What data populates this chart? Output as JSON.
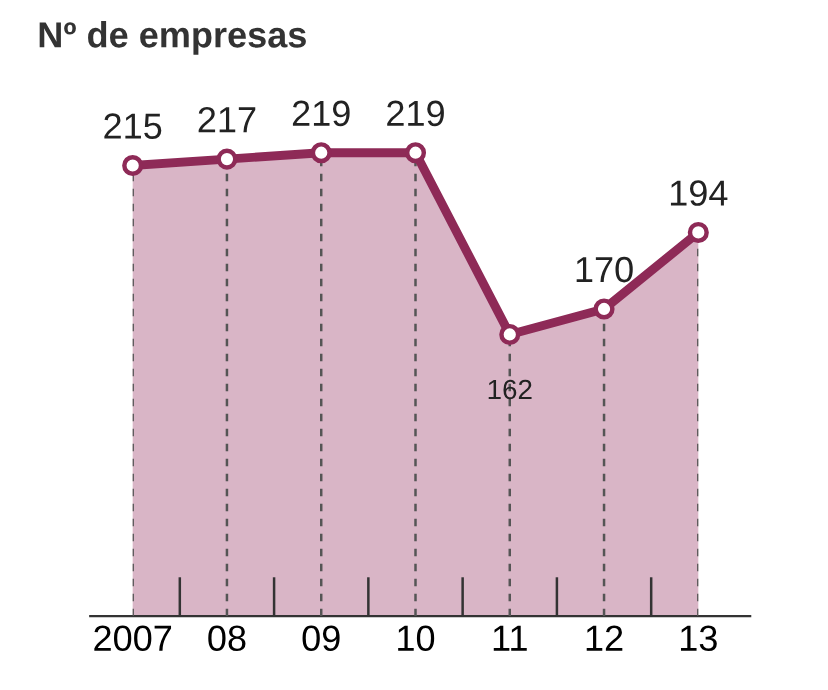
{
  "chart_data": {
    "type": "area",
    "title": "Nº de empresas",
    "categories": [
      "2007",
      "08",
      "09",
      "10",
      "11",
      "12",
      "13"
    ],
    "series": [
      {
        "color": "#8e2a57",
        "values": [
          215,
          217,
          219,
          219,
          162,
          170,
          194
        ]
      }
    ],
    "data_labels": true,
    "marker": "circle",
    "line_style": "solid",
    "grid": "x",
    "legend": false,
    "tick_labels": "x"
  }
}
